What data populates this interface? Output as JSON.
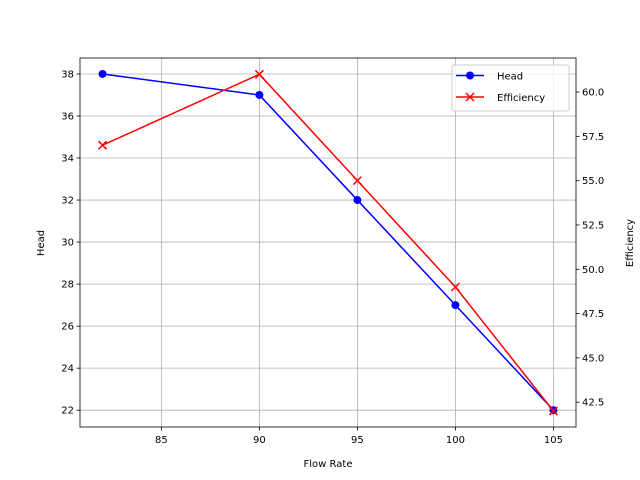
{
  "chart_data": {
    "type": "line",
    "title": "",
    "xlabel": "Flow Rate",
    "ylabel_left": "Head",
    "ylabel_right": "Efficiency",
    "x": [
      82,
      90,
      95,
      100,
      105
    ],
    "xlim": [
      80.85,
      106.15
    ],
    "xticks": [
      85,
      90,
      95,
      100,
      105
    ],
    "grid": true,
    "legend_position": "upper-right",
    "series": [
      {
        "name": "Head",
        "axis": "left",
        "values": [
          38,
          37,
          32,
          27,
          22
        ],
        "color": "#0000ff",
        "marker": "circle"
      },
      {
        "name": "Efficiency",
        "axis": "right",
        "values": [
          57,
          61,
          55,
          49,
          42
        ],
        "color": "#ff0000",
        "marker": "x"
      }
    ],
    "left_axis": {
      "ylim": [
        21.2,
        38.76
      ],
      "ticks": [
        "22",
        "24",
        "26",
        "28",
        "30",
        "32",
        "34",
        "36",
        "38"
      ],
      "label_color": "#0000ff"
    },
    "right_axis": {
      "ylim": [
        41.1,
        61.92
      ],
      "ticks": [
        "42.5",
        "45.0",
        "47.5",
        "50.0",
        "52.5",
        "55.0",
        "57.5",
        "60.0"
      ],
      "label_color": "#ff0000"
    }
  }
}
